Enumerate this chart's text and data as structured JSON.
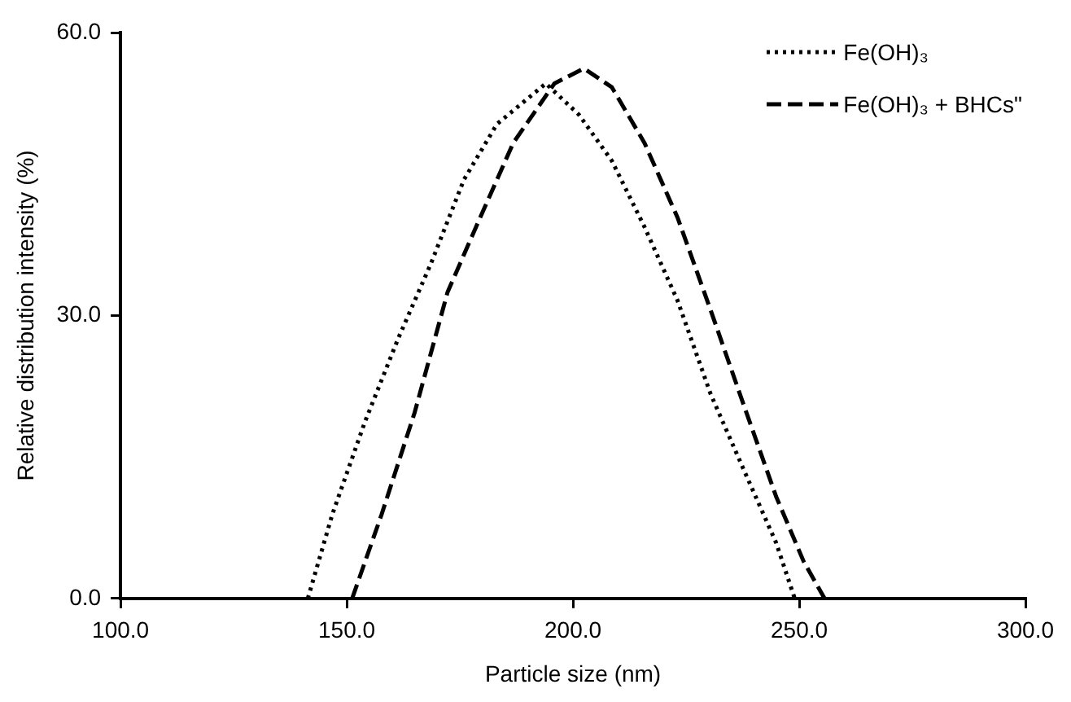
{
  "chart_data": {
    "type": "line",
    "xlabel": "Particle size (nm)",
    "ylabel": "Relative distribution intensity (%)",
    "xlim": [
      100,
      300
    ],
    "xticks": [
      {
        "value": 100,
        "label": "100.0"
      },
      {
        "value": 150,
        "label": "150.0"
      },
      {
        "value": 200,
        "label": "200.0"
      },
      {
        "value": 250,
        "label": "250.0"
      },
      {
        "value": 300,
        "label": "300.0"
      }
    ],
    "ylim": [
      0,
      60
    ],
    "yticks": [
      {
        "value": 0,
        "label": "0.0"
      },
      {
        "value": 30,
        "label": "30.0"
      },
      {
        "value": 60,
        "label": "60.0"
      }
    ],
    "grid": false,
    "legend": "top right",
    "marker": "none",
    "series": [
      {
        "name": "Fe(OH)₃",
        "color": "#000000",
        "line_style": "dotted",
        "x": [
          141.4,
          146.8,
          154,
          161.4,
          168.6,
          175.9,
          183.2,
          194,
          201.3,
          208.6,
          215.8,
          223.1,
          230.4,
          237.6,
          244.9,
          249
        ],
        "values": [
          0,
          8.9,
          18.7,
          27.6,
          35.5,
          44.4,
          50.3,
          54.6,
          51.3,
          46.4,
          39.4,
          31.6,
          21.7,
          13.8,
          5.9,
          0
        ]
      },
      {
        "name": "Fe(OH)₃ + BHCs\"",
        "color": "#000000",
        "line_style": "dashed",
        "x": [
          151.2,
          157.7,
          165,
          172.3,
          179.5,
          186.8,
          195.9,
          202.4,
          208.6,
          215.8,
          223.1,
          230.4,
          237.6,
          244.9,
          251,
          255.6
        ],
        "values": [
          0,
          8.9,
          19.7,
          32.5,
          40.4,
          48.3,
          54.6,
          56.2,
          54.2,
          48.3,
          40.4,
          30.6,
          20.7,
          10.8,
          3.9,
          0
        ]
      }
    ]
  }
}
